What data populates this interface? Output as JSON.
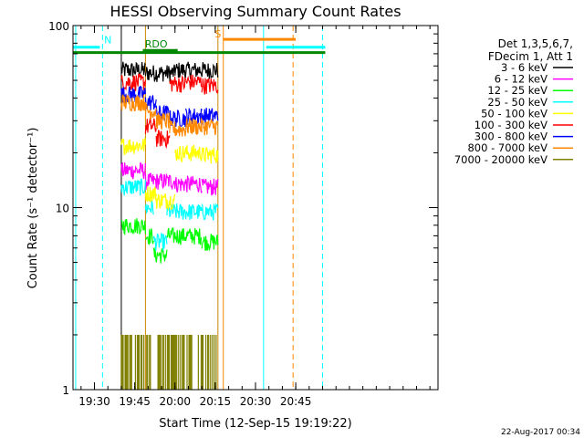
{
  "chart_data": {
    "type": "line",
    "title": "HESSI Observing Summary Count Rates",
    "xlabel": "Start Time (12-Sep-15 19:19:22)",
    "ylabel": "Count Rate (s⁻¹ detector⁻¹)",
    "x_unit": "minutes of day",
    "xlim": [
      1162,
      1298
    ],
    "ylim": [
      1,
      100
    ],
    "yscale": "log",
    "grid": false,
    "legend_position": "right",
    "x_ticks": [
      {
        "v": 1170,
        "label": "19:30"
      },
      {
        "v": 1185,
        "label": "19:45"
      },
      {
        "v": 1200,
        "label": "20:00"
      },
      {
        "v": 1215,
        "label": "20:15"
      },
      {
        "v": 1230,
        "label": "20:30"
      },
      {
        "v": 1245,
        "label": "20:45"
      }
    ],
    "y_ticks": [
      {
        "v": 1,
        "label": "1"
      },
      {
        "v": 10,
        "label": "10"
      },
      {
        "v": 100,
        "label": "100"
      }
    ],
    "legend_header": [
      "Det 1,3,5,6,7,",
      "FDecim 1, Att 1"
    ],
    "series": [
      {
        "name": "3 - 6 keV",
        "color": "#000000",
        "segments": [
          [
            1180,
            1189,
            57
          ],
          [
            1189,
            1200,
            55
          ],
          [
            1200,
            1210,
            57
          ],
          [
            1210,
            1216,
            57
          ]
        ]
      },
      {
        "name": "6 - 12 keV",
        "color": "#ff00ff",
        "segments": [
          [
            1180,
            1189,
            16
          ],
          [
            1189,
            1200,
            14
          ],
          [
            1200,
            1210,
            13.5
          ],
          [
            1210,
            1216,
            13
          ]
        ]
      },
      {
        "name": "12 - 25 keV",
        "color": "#00ff00",
        "segments": [
          [
            1180,
            1189,
            8
          ],
          [
            1189,
            1192,
            7
          ],
          [
            1192,
            1197,
            5.5
          ],
          [
            1197,
            1210,
            7
          ],
          [
            1210,
            1216,
            6.5
          ]
        ]
      },
      {
        "name": "25 - 50 keV",
        "color": "#00ffff",
        "segments": [
          [
            1180,
            1189,
            13
          ],
          [
            1189,
            1192,
            10
          ],
          [
            1192,
            1197,
            6.5
          ],
          [
            1197,
            1210,
            9.5
          ],
          [
            1210,
            1216,
            9.5
          ]
        ]
      },
      {
        "name": "50 - 100 keV",
        "color": "#ffff00",
        "segments": [
          [
            1180,
            1189,
            22
          ],
          [
            1189,
            1193,
            12
          ],
          [
            1193,
            1200,
            11
          ],
          [
            1200,
            1210,
            20
          ],
          [
            1210,
            1216,
            19.5
          ]
        ]
      },
      {
        "name": "100 - 300 keV",
        "color": "#ff0000",
        "segments": [
          [
            1180,
            1189,
            49
          ],
          [
            1189,
            1193,
            28
          ],
          [
            1193,
            1198,
            24
          ],
          [
            1198,
            1204,
            48
          ],
          [
            1204,
            1210,
            49
          ],
          [
            1210,
            1216,
            47
          ]
        ]
      },
      {
        "name": "300 - 800 keV",
        "color": "#0000ff",
        "segments": [
          [
            1180,
            1189,
            42
          ],
          [
            1189,
            1193,
            38
          ],
          [
            1193,
            1198,
            33
          ],
          [
            1198,
            1204,
            31
          ],
          [
            1204,
            1210,
            32
          ],
          [
            1210,
            1216,
            32
          ]
        ]
      },
      {
        "name": "800 - 7000 keV",
        "color": "#ff8800",
        "segments": [
          [
            1180,
            1189,
            38
          ],
          [
            1189,
            1193,
            34
          ],
          [
            1193,
            1198,
            30
          ],
          [
            1198,
            1204,
            27
          ],
          [
            1204,
            1210,
            28
          ],
          [
            1210,
            1216,
            28
          ]
        ]
      },
      {
        "name": "7000 - 20000 keV",
        "color": "#808000",
        "segments": [
          [
            1180,
            1216,
            1.7
          ]
        ]
      }
    ],
    "vertical_markers": [
      {
        "x": 1163,
        "color": "#00ffff",
        "style": "solid"
      },
      {
        "x": 1173,
        "color": "#00ffff",
        "style": "dashed"
      },
      {
        "x": 1180,
        "color": "#000000",
        "style": "solid"
      },
      {
        "x": 1189,
        "color": "#cc8800",
        "style": "solid"
      },
      {
        "x": 1216,
        "color": "#cc8800",
        "style": "solid"
      },
      {
        "x": 1218,
        "color": "#ff8800",
        "style": "solid"
      },
      {
        "x": 1233,
        "color": "#00ffff",
        "style": "solid"
      },
      {
        "x": 1244,
        "color": "#ff8800",
        "style": "dashed"
      },
      {
        "x": 1255,
        "color": "#00ffff",
        "style": "dashed"
      }
    ],
    "flag_bars": [
      {
        "label": "N",
        "color": "#00ffff",
        "x1": 1162,
        "x2": 1172,
        "y": 76,
        "label_x": 1175,
        "label_y": 80
      },
      {
        "label": "",
        "color": "#00ffff",
        "x1": 1234,
        "x2": 1256,
        "y": 76,
        "label_x": 0,
        "label_y": 0
      },
      {
        "label": "S",
        "color": "#ff8800",
        "x1": 1218,
        "x2": 1245,
        "y": 84,
        "label_x": 1216,
        "label_y": 86
      },
      {
        "label": "",
        "color": "#008800",
        "x1": 1162,
        "x2": 1256,
        "y": 71,
        "label_x": 0,
        "label_y": 0
      },
      {
        "label": "RDO",
        "color": "#008800",
        "x1": 1188,
        "x2": 1201,
        "y": 73,
        "label_x": 1193,
        "label_y": 76
      }
    ],
    "annotation": "22-Aug-2017 00:34"
  }
}
